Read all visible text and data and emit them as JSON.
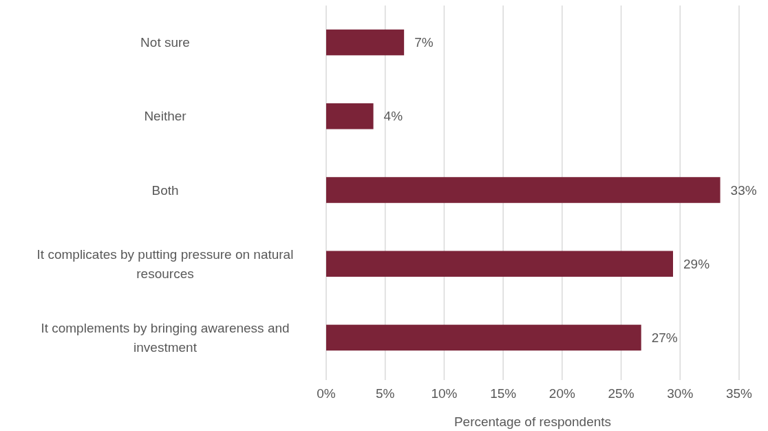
{
  "chart_data": {
    "type": "bar",
    "orientation": "horizontal",
    "xlabel": "Percentage of respondents",
    "categories": [
      "Not sure",
      "Neither",
      "Both",
      "It complicates by putting pressure on natural resources",
      "It complements by bringing awareness and investment"
    ],
    "values": [
      6.6,
      4,
      33.4,
      29.4,
      26.7
    ],
    "value_labels": [
      "7%",
      "4%",
      "33%",
      "29%",
      "27%"
    ],
    "color": "#7b2338",
    "xlim": [
      0,
      35
    ],
    "xticks": [
      {
        "value": 0,
        "label": "0%"
      },
      {
        "value": 5,
        "label": "5%"
      },
      {
        "value": 10,
        "label": "10%"
      },
      {
        "value": 15,
        "label": "15%"
      },
      {
        "value": 20,
        "label": "20%"
      },
      {
        "value": 25,
        "label": "25%"
      },
      {
        "value": 30,
        "label": "30%"
      },
      {
        "value": 35,
        "label": "35%"
      }
    ],
    "grid": "x"
  }
}
